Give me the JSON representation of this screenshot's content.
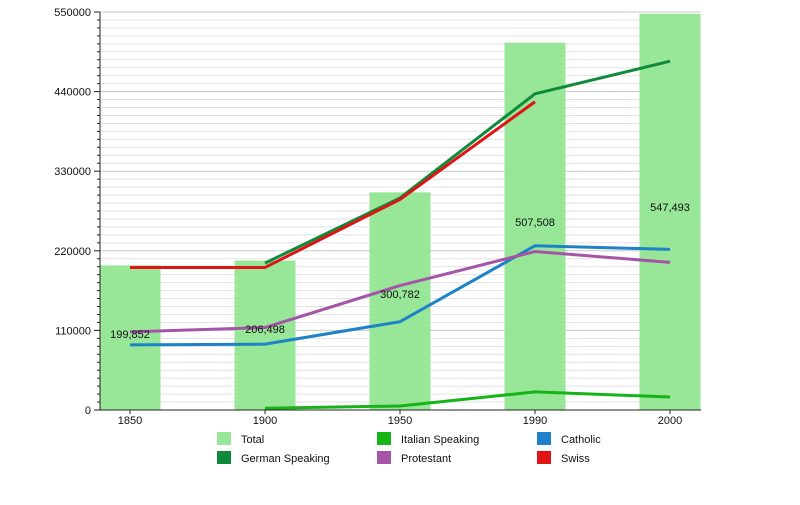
{
  "chart_data": {
    "type": "bar",
    "categories": [
      "1850",
      "1900",
      "1950",
      "1990",
      "2000"
    ],
    "ylim": [
      0,
      550000
    ],
    "yticks": [
      0,
      110000,
      220000,
      330000,
      440000,
      550000
    ],
    "ytick_labels": [
      "0",
      "110000",
      "220000",
      "330000",
      "440000",
      "550000"
    ],
    "grid": true,
    "legend_position": "bottom",
    "bars": {
      "name": "Total",
      "color": "#98e698",
      "values": [
        199852,
        206498,
        300782,
        507508,
        547493
      ],
      "labels": [
        "199,852",
        "206,498",
        "300,782",
        "507,508",
        "547,493"
      ]
    },
    "series": [
      {
        "name": "German Speaking",
        "color": "#0e8a3a",
        "values": [
          null,
          203000,
          293000,
          437000,
          482000
        ]
      },
      {
        "name": "Italian Speaking",
        "color": "#16b416",
        "values": [
          null,
          2500,
          5500,
          25000,
          18000
        ]
      },
      {
        "name": "Catholic",
        "color": "#1e82c8",
        "values": [
          90000,
          91000,
          122000,
          227000,
          222000
        ]
      },
      {
        "name": "Protestant",
        "color": "#a555a8",
        "values": [
          108000,
          114000,
          172000,
          219000,
          204000
        ]
      },
      {
        "name": "Swiss",
        "color": "#e01414",
        "values": [
          197000,
          197000,
          291000,
          426000,
          null
        ]
      }
    ],
    "legend_order": [
      "Total",
      "Italian Speaking",
      "Catholic",
      "German Speaking",
      "Protestant",
      "Swiss"
    ]
  }
}
